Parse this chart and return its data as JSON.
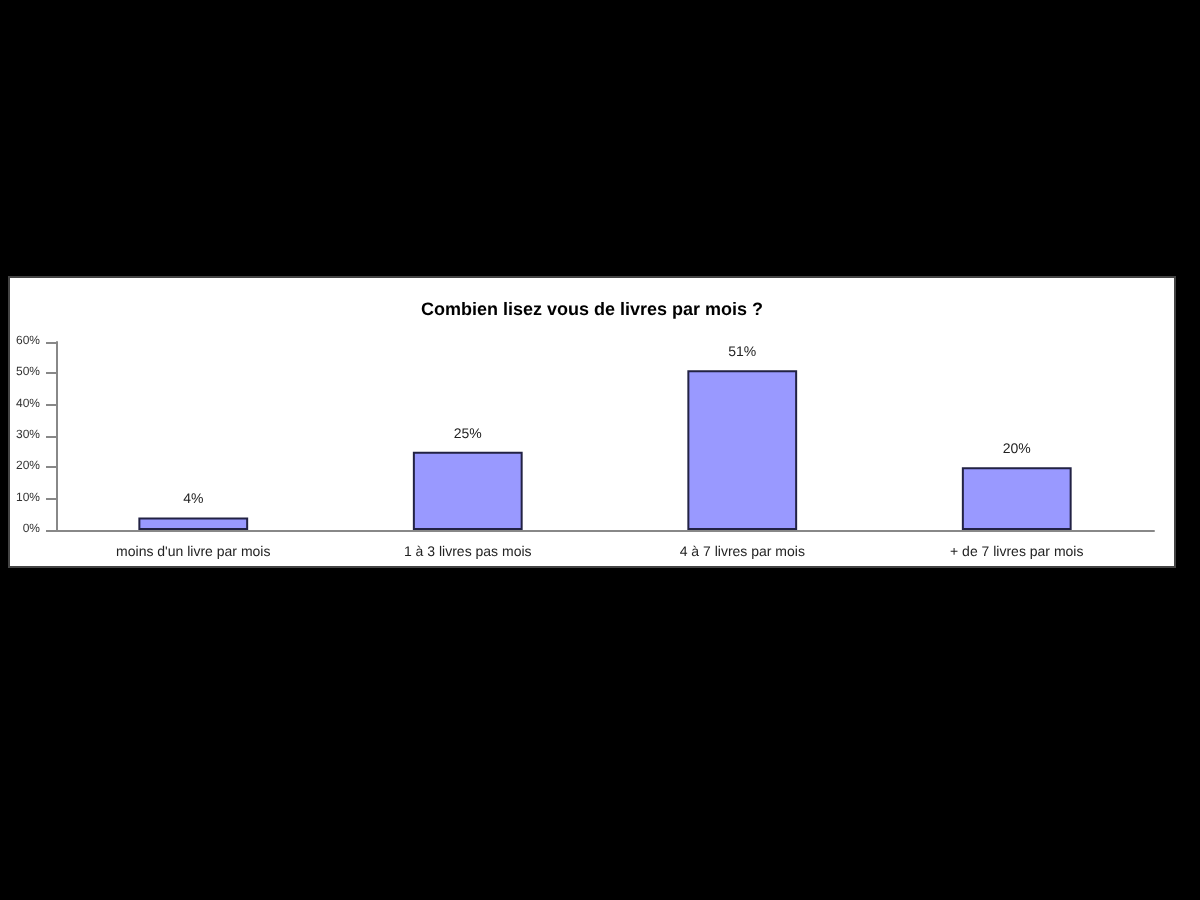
{
  "chart_data": {
    "type": "bar",
    "title": "Combien lisez vous de livres par mois ?",
    "categories": [
      "moins d'un livre par mois",
      "1 à 3 livres pas mois",
      "4 à 7 livres par mois",
      "+ de 7 livres par mois"
    ],
    "values": [
      4,
      25,
      51,
      20
    ],
    "value_labels": [
      "4%",
      "25%",
      "51%",
      "20%"
    ],
    "color": "#9999ff",
    "ylim": [
      0,
      60
    ],
    "yticks": [
      {
        "value": 0,
        "label": "0%"
      },
      {
        "value": 10,
        "label": "10%"
      },
      {
        "value": 20,
        "label": "20%"
      },
      {
        "value": 30,
        "label": "30%"
      },
      {
        "value": 40,
        "label": "40%"
      },
      {
        "value": 50,
        "label": "50%"
      },
      {
        "value": 60,
        "label": "60%"
      }
    ],
    "grid": false
  }
}
